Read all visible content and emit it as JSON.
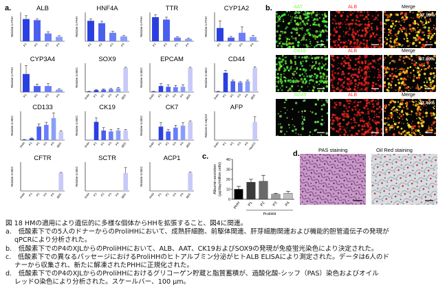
{
  "panels": {
    "a": "a.",
    "b": "b.",
    "c": "c.",
    "d": "d."
  },
  "a_genes": [
    {
      "gene": "ALB",
      "ylabel": "Relative to PHH",
      "cats": [
        "P1",
        "P2",
        "P3",
        "P4"
      ],
      "values": [
        1.0,
        0.95,
        0.35,
        0.2
      ],
      "errs": [
        0.15,
        0.05,
        0.08,
        0.05
      ],
      "colors": [
        "#2a3fe0",
        "#4a5ef0",
        "#6a7ef8",
        "#8a9ef8"
      ],
      "ymax": 1.3
    },
    {
      "gene": "HNF4A",
      "ylabel": "Relative to PHH",
      "cats": [
        "P1",
        "P2",
        "P3",
        "P4"
      ],
      "values": [
        0.85,
        0.75,
        0.35,
        0.2
      ],
      "errs": [
        0.08,
        0.08,
        0.06,
        0.04
      ],
      "colors": [
        "#2a3fe0",
        "#4a5ef0",
        "#6a7ef8",
        "#8a9ef8"
      ],
      "ymax": 1.2
    },
    {
      "gene": "TTR",
      "ylabel": "Relative to PHH",
      "cats": [
        "P1",
        "P2",
        "P3",
        "P4"
      ],
      "values": [
        1.0,
        0.9,
        0.15,
        0.1
      ],
      "errs": [
        0.1,
        0.1,
        0.04,
        0.03
      ],
      "colors": [
        "#2a3fe0",
        "#4a5ef0",
        "#6a7ef8",
        "#8a9ef8"
      ],
      "ymax": 1.2
    },
    {
      "gene": "CYP1A2",
      "ylabel": "Relative to PHH",
      "cats": [
        "P1",
        "P2",
        "P3",
        "P4"
      ],
      "values": [
        0.55,
        0.15,
        0.35,
        0.18
      ],
      "errs": [
        0.3,
        0.05,
        0.25,
        0.06
      ],
      "colors": [
        "#2a3fe0",
        "#4a5ef0",
        "#6a7ef8",
        "#8a9ef8"
      ],
      "ymax": 1.2
    },
    {
      "gene": "CYP3A4",
      "ylabel": "Relative to PHH",
      "cats": [
        "P1",
        "P2",
        "P3",
        "P4"
      ],
      "values": [
        0.75,
        0.25,
        0.25,
        0.1
      ],
      "errs": [
        0.35,
        0.08,
        0.1,
        0.04
      ],
      "colors": [
        "#2a3fe0",
        "#4a5ef0",
        "#6a7ef8",
        "#8a9ef8"
      ],
      "ymax": 1.2
    },
    {
      "gene": "SOX9",
      "ylabel": "Relative to BEC",
      "cats": [
        "PHH",
        "P1",
        "P2",
        "P3",
        "P4",
        "BEC"
      ],
      "values": [
        0.02,
        0.08,
        0.1,
        0.12,
        0.15,
        1.0
      ],
      "errs": [
        0.01,
        0.03,
        0.03,
        0.03,
        0.04,
        0.03
      ],
      "colors": [
        "#1f30c0",
        "#2a3fe0",
        "#4a5ef0",
        "#6a7ef8",
        "#8a9ef8",
        "#c7c9f8"
      ],
      "ymax": 1.2
    },
    {
      "gene": "EPCAM",
      "ylabel": "Relative to BEC",
      "cats": [
        "PHH",
        "P1",
        "P2",
        "P3",
        "P4",
        "BEC"
      ],
      "values": [
        0.02,
        0.25,
        0.22,
        0.2,
        0.22,
        1.0
      ],
      "errs": [
        0.01,
        0.1,
        0.08,
        0.08,
        0.08,
        0.03
      ],
      "colors": [
        "#1f30c0",
        "#2a3fe0",
        "#4a5ef0",
        "#6a7ef8",
        "#8a9ef8",
        "#c7c9f8"
      ],
      "ymax": 1.2
    },
    {
      "gene": "CD44",
      "ylabel": "Relative to BEC",
      "cats": [
        "PHH",
        "P1",
        "P2",
        "P3",
        "P4",
        "BEC"
      ],
      "values": [
        0.02,
        0.8,
        0.45,
        0.4,
        0.45,
        1.0
      ],
      "errs": [
        0.01,
        0.1,
        0.05,
        0.04,
        0.05,
        0.05
      ],
      "colors": [
        "#1f30c0",
        "#2a3fe0",
        "#4a5ef0",
        "#6a7ef8",
        "#8a9ef8",
        "#c7c9f8"
      ],
      "ymax": 1.2
    },
    {
      "gene": "CD133",
      "ylabel": "Relative to BEC",
      "cats": [
        "PHH",
        "P1",
        "P2",
        "P3",
        "P4",
        "BEC"
      ],
      "values": [
        0.05,
        0.2,
        1.6,
        1.8,
        2.6,
        1.0
      ],
      "errs": [
        0.03,
        0.05,
        0.3,
        0.3,
        0.6,
        0.1
      ],
      "colors": [
        "#1f30c0",
        "#2a3fe0",
        "#4a5ef0",
        "#6a7ef8",
        "#8a9ef8",
        "#c7c9f8"
      ],
      "ymax": 3.4
    },
    {
      "gene": "CK19",
      "ylabel": "Relative to BEC",
      "cats": [
        "PHH",
        "P1",
        "P2",
        "P3",
        "P4",
        "BEC"
      ],
      "values": [
        0.02,
        1.9,
        1.0,
        0.9,
        1.0,
        1.0
      ],
      "errs": [
        0.01,
        0.4,
        0.3,
        0.2,
        0.2,
        0.1
      ],
      "colors": [
        "#1f30c0",
        "#2a3fe0",
        "#4a5ef0",
        "#6a7ef8",
        "#8a9ef8",
        "#c7c9f8"
      ],
      "ymax": 3.0
    },
    {
      "gene": "CK7",
      "ylabel": "Relative to BEC",
      "cats": [
        "PHH",
        "P1",
        "P2",
        "P3",
        "P4",
        "BEC"
      ],
      "values": [
        0.02,
        0.7,
        0.45,
        0.65,
        0.75,
        0.95
      ],
      "errs": [
        0.01,
        0.2,
        0.1,
        0.12,
        0.15,
        0.05
      ],
      "colors": [
        "#1f30c0",
        "#2a3fe0",
        "#4a5ef0",
        "#6a7ef8",
        "#8a9ef8",
        "#c7c9f8"
      ],
      "ymax": 1.5
    },
    {
      "gene": "AFP",
      "ylabel": "Relative to HepG2",
      "cats": [
        "PHH",
        "P1",
        "P2",
        "P3",
        "P4",
        "HepG2"
      ],
      "values": [
        0.0,
        0.0,
        0.0,
        0.0,
        0.0,
        1.0
      ],
      "errs": [
        0,
        0,
        0,
        0,
        0,
        0.3
      ],
      "colors": [
        "#1f30c0",
        "#2a3fe0",
        "#4a5ef0",
        "#6a7ef8",
        "#8a9ef8",
        "#c7c9f8"
      ],
      "ymax": 1.6
    },
    {
      "gene": "CFTR",
      "ylabel": "Relative to BEC",
      "cats": [
        "PHH",
        "P1",
        "P2",
        "P3",
        "P4",
        "BEC"
      ],
      "values": [
        0.0,
        0.0,
        0.0,
        0.0,
        0.0,
        1.0
      ],
      "errs": [
        0,
        0,
        0,
        0,
        0,
        0.03
      ],
      "colors": [
        "#1f30c0",
        "#2a3fe0",
        "#4a5ef0",
        "#6a7ef8",
        "#8a9ef8",
        "#c7c9f8"
      ],
      "ymax": 1.6
    },
    {
      "gene": "SCTR",
      "ylabel": "Relative to BEC",
      "cats": [
        "PHH",
        "P1",
        "P2",
        "P3",
        "P4",
        "BEC"
      ],
      "values": [
        0.0,
        0.0,
        0.0,
        0.0,
        0.0,
        1.0
      ],
      "errs": [
        0,
        0,
        0,
        0,
        0,
        0.3
      ],
      "colors": [
        "#1f30c0",
        "#2a3fe0",
        "#4a5ef0",
        "#6a7ef8",
        "#8a9ef8",
        "#c7c9f8"
      ],
      "ymax": 1.6
    },
    {
      "gene": "ACP1",
      "ylabel": "Relative to BEC",
      "cats": [
        "PHH",
        "P1",
        "P2",
        "P3",
        "P4",
        "BEC"
      ],
      "values": [
        0.0,
        0.0,
        0.0,
        0.0,
        0.0,
        1.0
      ],
      "errs": [
        0,
        0,
        0,
        0,
        0,
        0.05
      ],
      "colors": [
        "#1f30c0",
        "#2a3fe0",
        "#4a5ef0",
        "#6a7ef8",
        "#8a9ef8",
        "#c7c9f8"
      ],
      "ymax": 1.6
    }
  ],
  "chart_data": {
    "type": "bar",
    "categories": [
      "PHH",
      "P1",
      "P2",
      "P3",
      "P4"
    ],
    "values": [
      10,
      17,
      18,
      5,
      6
    ],
    "errors": [
      3,
      3,
      6,
      1,
      2
    ],
    "ylabel": "Albumin secretion\n(μg/day/million cells)",
    "xlabel": "ProliHH",
    "ylim": [
      0,
      40
    ],
    "yticks": [
      0,
      10,
      20,
      30,
      40
    ],
    "colors": [
      "#000000",
      "#3a3a3a",
      "#6a6a6a",
      "#9a9a9a",
      "#c0c0c0"
    ]
  },
  "b_rows": [
    {
      "m1": "AAT",
      "m1color": "#7cff4a",
      "m2": "ALB",
      "merge": "Merge",
      "pct": "97.10%",
      "type1": "green",
      "type2": "red"
    },
    {
      "m1": "CK19",
      "m1color": "#7cff4a",
      "m2": "ALB",
      "merge": "Merge",
      "pct": "97.80%",
      "type1": "green",
      "type2": "red"
    },
    {
      "m1": "SOX9",
      "m1color": "#7cff4a",
      "m2": "ALB",
      "merge": "Merge",
      "pct": "97.40%",
      "type1": "sparse",
      "type2": "red"
    }
  ],
  "d": {
    "pas": "PAS staining",
    "oil": "Oil Red staining"
  },
  "caption": [
    "図 18 HMの適用により遺伝的に多様な個体からHHを拡張すること、図4に関連。",
    "a.　低酸素下での5人のドナーからのProliHHにおいて、成熟肝細胞、前駆体関連、肝芽細胞関連および機能的胆管遺伝子の発現が",
    "qPCRにより分析された。",
    "b.　低酸素下でのP4のXJLからのProliHHにおいて、ALB、AAT、CK19およびSOX9の発現が免疫蛍光染色により決定された。",
    "c.　低酸素下での異なるパッセージにおけるProliHHのヒトアルブミン分泌がヒトALB ELISAにより測定された。データは6人のド",
    "ナーから収集され、新たに解凍されたPHHに正規化された。",
    "d.　低酸素下でのP4のXJLからのProliHHにおけるグリコーゲン貯蔵と脂質蓄積が、過酸化酸-シッフ（PAS）染色およびオイル",
    "レッドO染色により分析された。スケールバー、100 μm。"
  ]
}
